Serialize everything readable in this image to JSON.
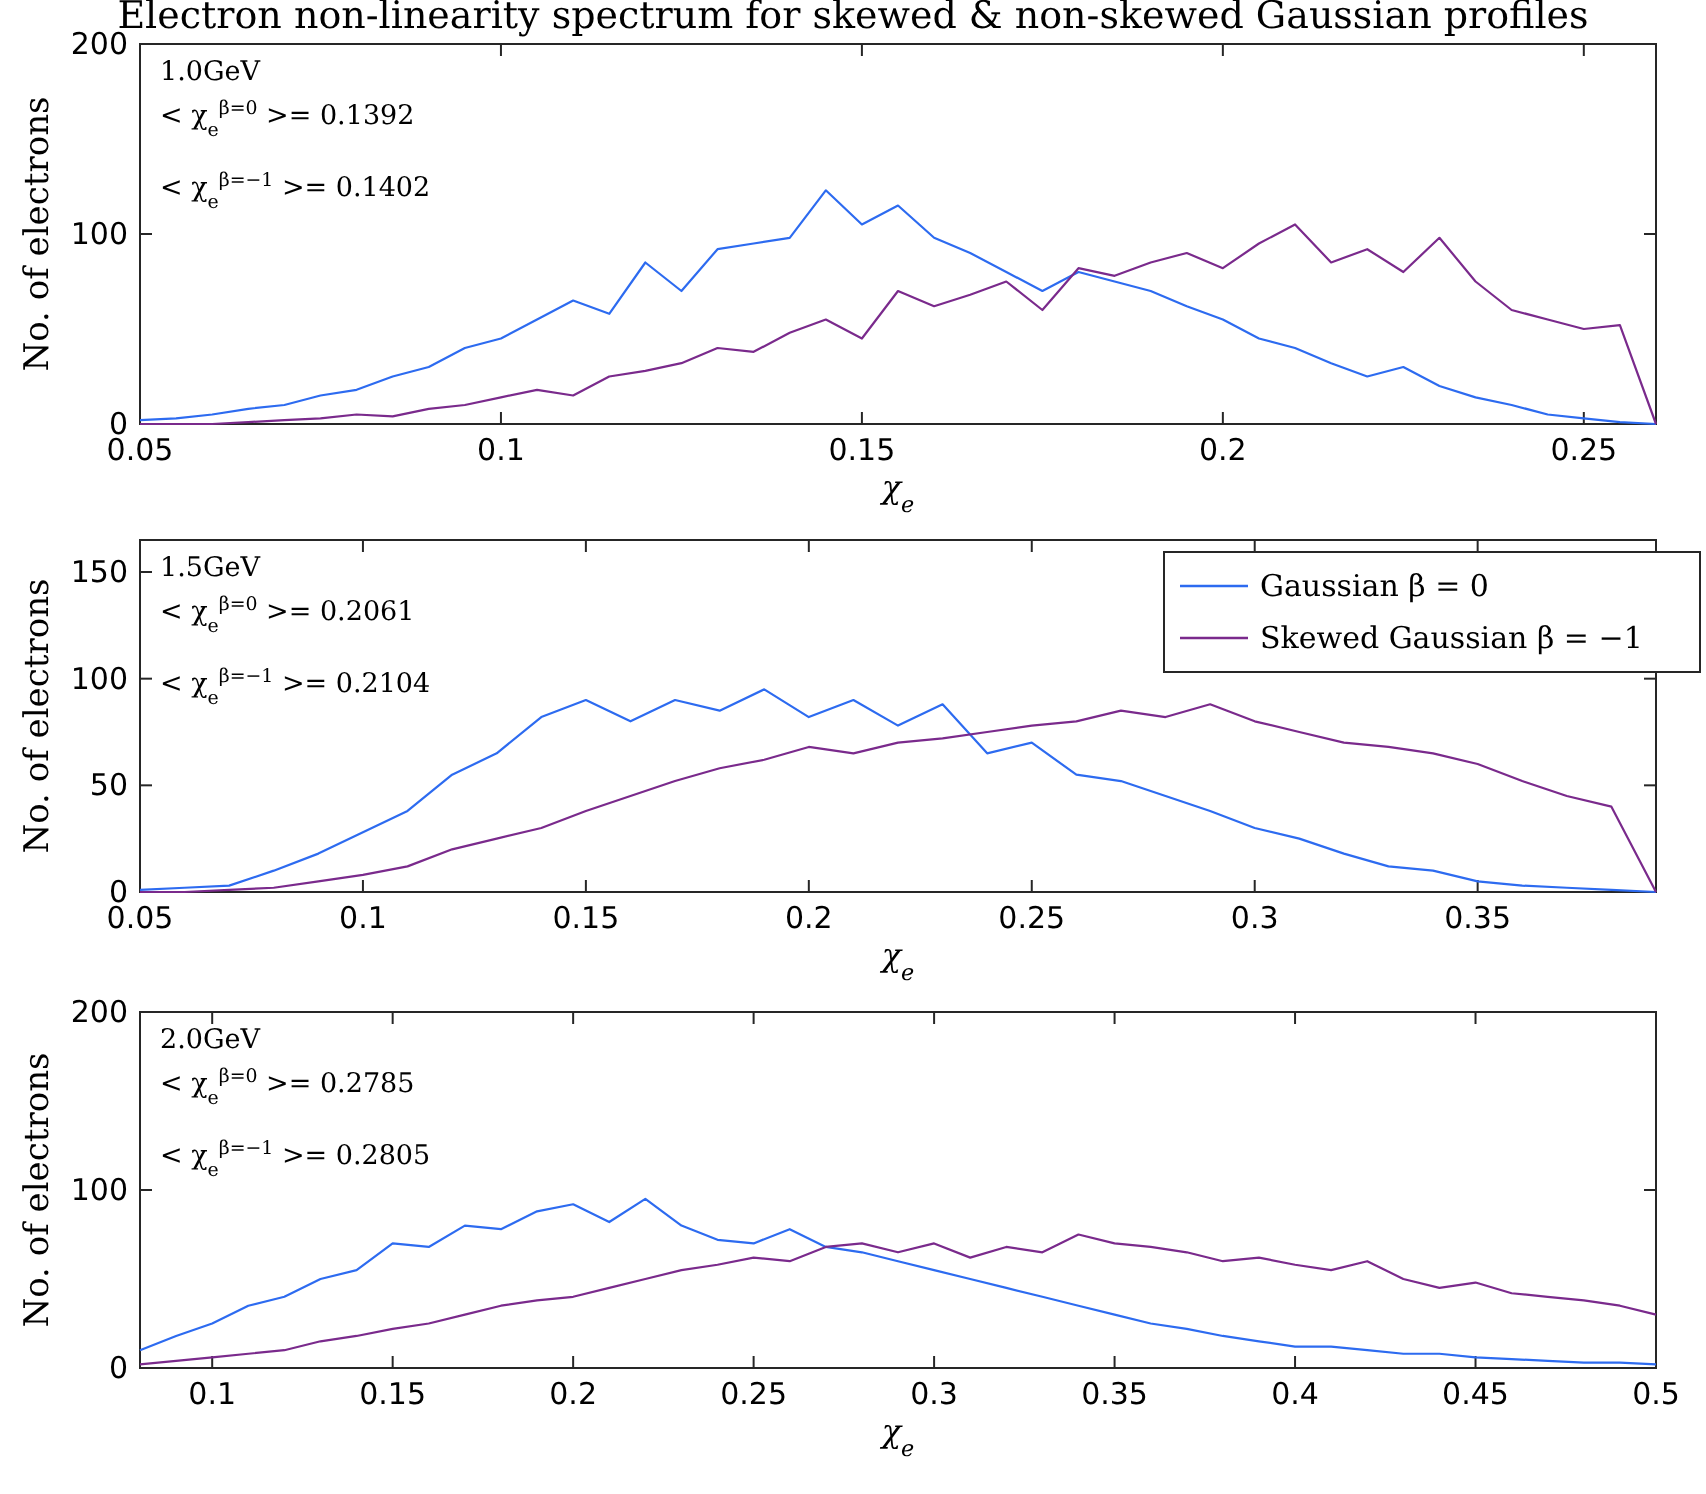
{
  "chart_data": [
    {
      "type": "line",
      "title": "Electron non-linearity spectrum for skewed & non-skewed Gaussian profiles",
      "xlabel": "χ$_{e}$",
      "ylabel": "No. of electrons",
      "xlim": [
        0.05,
        0.26
      ],
      "ylim": [
        0,
        200
      ],
      "xticks": [
        0.05,
        0.1,
        0.15,
        0.2,
        0.25
      ],
      "yticks": [
        0,
        100,
        200
      ],
      "annotations": [
        "1.0GeV",
        "< χ$_{e}$$^{β=0}$ >= 0.1392",
        "< χ$_{e}$$^{β=−1}$ >= 0.1402"
      ],
      "x": [
        0.05,
        0.055,
        0.06,
        0.065,
        0.07,
        0.075,
        0.08,
        0.085,
        0.09,
        0.095,
        0.1,
        0.105,
        0.11,
        0.115,
        0.12,
        0.125,
        0.13,
        0.135,
        0.14,
        0.145,
        0.15,
        0.155,
        0.16,
        0.165,
        0.17,
        0.175,
        0.18,
        0.185,
        0.19,
        0.195,
        0.2,
        0.205,
        0.21,
        0.215,
        0.22,
        0.225,
        0.23,
        0.235,
        0.24,
        0.245,
        0.25,
        0.255,
        0.26
      ],
      "series": [
        {
          "color": "#2d6bf0",
          "values": [
            2,
            3,
            5,
            8,
            10,
            15,
            18,
            25,
            30,
            40,
            45,
            55,
            65,
            58,
            85,
            70,
            92,
            95,
            98,
            123,
            105,
            115,
            98,
            90,
            80,
            70,
            80,
            75,
            70,
            62,
            55,
            45,
            40,
            32,
            25,
            30,
            20,
            14,
            10,
            5,
            3,
            1,
            0
          ]
        },
        {
          "color": "#7a2a8c",
          "values": [
            0,
            0,
            0,
            1,
            2,
            3,
            5,
            4,
            8,
            10,
            14,
            18,
            15,
            25,
            28,
            32,
            40,
            38,
            48,
            55,
            45,
            70,
            62,
            68,
            75,
            60,
            82,
            78,
            85,
            90,
            82,
            95,
            105,
            85,
            92,
            80,
            98,
            75,
            60,
            55,
            50,
            52,
            0
          ]
        }
      ]
    },
    {
      "type": "line",
      "xlabel": "χ$_{e}$",
      "ylabel": "No. of electrons",
      "xlim": [
        0.05,
        0.39
      ],
      "ylim": [
        0,
        165
      ],
      "xticks": [
        0.05,
        0.1,
        0.15,
        0.2,
        0.25,
        0.3,
        0.35
      ],
      "yticks": [
        0,
        50,
        100,
        150
      ],
      "legend": "top right",
      "annotations": [
        "1.5GeV",
        "< χ$_{e}$$^{β=0}$ >= 0.2061",
        "< χ$_{e}$$^{β=−1}$ >= 0.2104"
      ],
      "x": [
        0.05,
        0.06,
        0.07,
        0.08,
        0.09,
        0.1,
        0.11,
        0.12,
        0.13,
        0.14,
        0.15,
        0.16,
        0.17,
        0.18,
        0.19,
        0.2,
        0.21,
        0.22,
        0.23,
        0.24,
        0.25,
        0.26,
        0.27,
        0.28,
        0.29,
        0.3,
        0.31,
        0.32,
        0.33,
        0.34,
        0.35,
        0.36,
        0.37,
        0.38,
        0.39
      ],
      "series": [
        {
          "name": "Gaussian β = 0",
          "color": "#2d6bf0",
          "values": [
            1,
            2,
            3,
            10,
            18,
            28,
            38,
            55,
            65,
            82,
            90,
            80,
            90,
            85,
            95,
            82,
            90,
            78,
            88,
            65,
            70,
            55,
            52,
            45,
            38,
            30,
            25,
            18,
            12,
            10,
            5,
            3,
            2,
            1,
            0
          ]
        },
        {
          "name": "Skewed Gaussian β = −1",
          "color": "#7a2a8c",
          "values": [
            0,
            0,
            1,
            2,
            5,
            8,
            12,
            20,
            25,
            30,
            38,
            45,
            52,
            58,
            62,
            68,
            65,
            70,
            72,
            75,
            78,
            80,
            85,
            82,
            88,
            80,
            75,
            70,
            68,
            65,
            60,
            52,
            45,
            40,
            0
          ]
        }
      ]
    },
    {
      "type": "line",
      "xlabel": "χ$_{e}$",
      "ylabel": "No. of electrons",
      "xlim": [
        0.08,
        0.5
      ],
      "ylim": [
        0,
        200
      ],
      "xticks": [
        0.1,
        0.15,
        0.2,
        0.25,
        0.3,
        0.35,
        0.4,
        0.45,
        0.5
      ],
      "yticks": [
        0,
        100,
        200
      ],
      "annotations": [
        "2.0GeV",
        "< χ$_{e}$$^{β=0}$ >= 0.2785",
        "< χ$_{e}$$^{β=−1}$ >= 0.2805"
      ],
      "x": [
        0.08,
        0.09,
        0.1,
        0.11,
        0.12,
        0.13,
        0.14,
        0.15,
        0.16,
        0.17,
        0.18,
        0.19,
        0.2,
        0.21,
        0.22,
        0.23,
        0.24,
        0.25,
        0.26,
        0.27,
        0.28,
        0.29,
        0.3,
        0.31,
        0.32,
        0.33,
        0.34,
        0.35,
        0.36,
        0.37,
        0.38,
        0.39,
        0.4,
        0.41,
        0.42,
        0.43,
        0.44,
        0.45,
        0.46,
        0.47,
        0.48,
        0.49,
        0.5
      ],
      "series": [
        {
          "color": "#2d6bf0",
          "values": [
            10,
            18,
            25,
            35,
            40,
            50,
            55,
            70,
            68,
            80,
            78,
            88,
            92,
            82,
            95,
            80,
            72,
            70,
            78,
            68,
            65,
            60,
            55,
            50,
            45,
            40,
            35,
            30,
            25,
            22,
            18,
            15,
            12,
            12,
            10,
            8,
            8,
            6,
            5,
            4,
            3,
            3,
            2
          ]
        },
        {
          "color": "#7a2a8c",
          "values": [
            2,
            4,
            6,
            8,
            10,
            15,
            18,
            22,
            25,
            30,
            35,
            38,
            40,
            45,
            50,
            55,
            58,
            62,
            60,
            68,
            70,
            65,
            70,
            62,
            68,
            65,
            75,
            70,
            68,
            65,
            60,
            62,
            58,
            55,
            60,
            50,
            45,
            48,
            42,
            40,
            38,
            35,
            30
          ]
        }
      ]
    }
  ]
}
